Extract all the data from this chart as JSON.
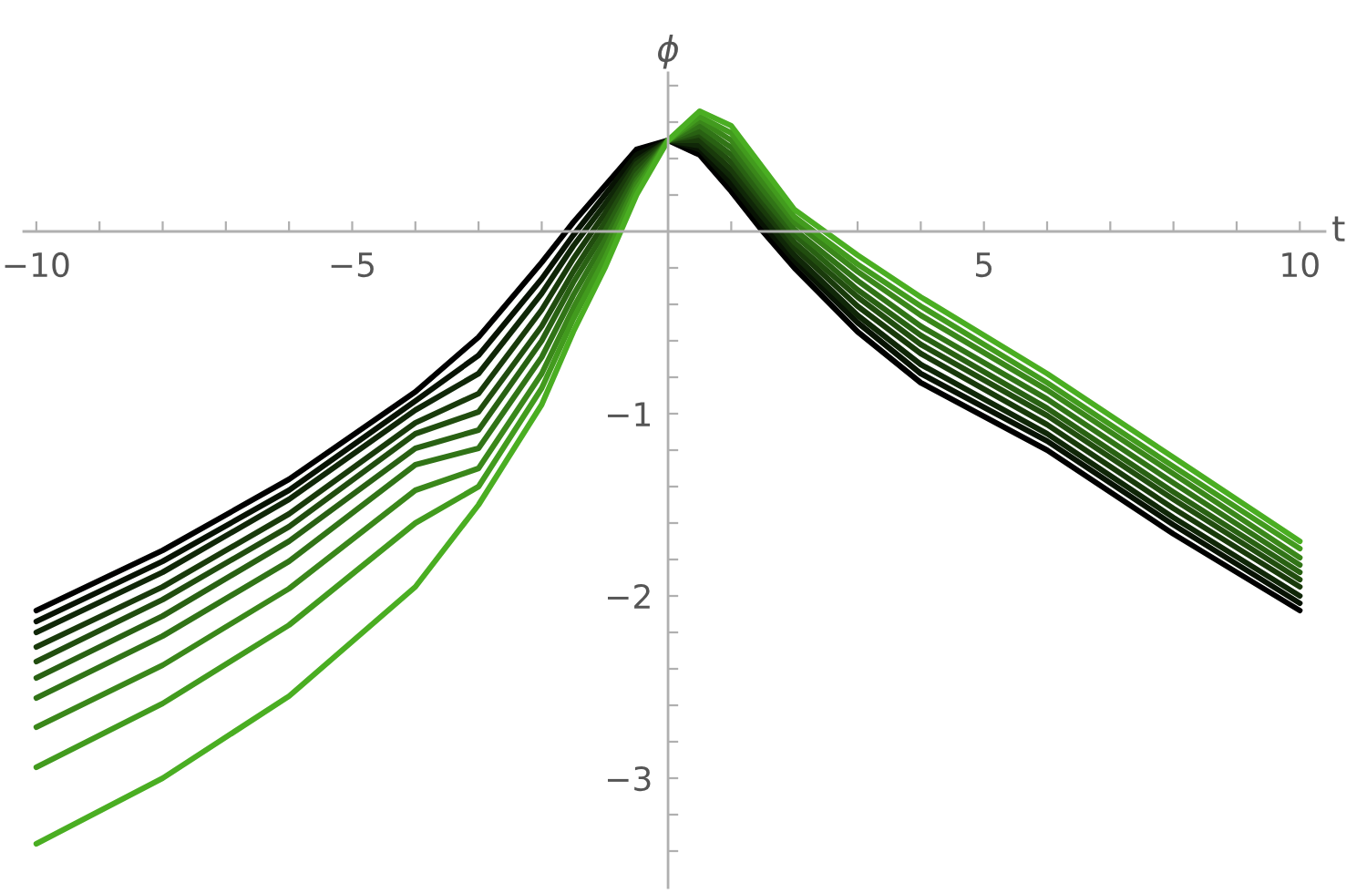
{
  "chart_data": {
    "type": "line",
    "xlabel": "t",
    "ylabel": "ϕ",
    "x": [
      -10,
      -8,
      -6,
      -4,
      -3,
      -2,
      -1.5,
      -1,
      -0.5,
      0,
      0.5,
      1,
      1.5,
      2,
      3,
      4,
      6,
      8,
      10
    ],
    "xlim": [
      -10.2,
      10.4
    ],
    "ylim": [
      -3.6,
      0.87
    ],
    "xticks": [
      {
        "value": -10,
        "label": "−10"
      },
      {
        "value": -9,
        "label": null
      },
      {
        "value": -8,
        "label": null
      },
      {
        "value": -7,
        "label": null
      },
      {
        "value": -6,
        "label": null
      },
      {
        "value": -5,
        "label": "−5"
      },
      {
        "value": -4,
        "label": null
      },
      {
        "value": -3,
        "label": null
      },
      {
        "value": -2,
        "label": null
      },
      {
        "value": -1,
        "label": null
      },
      {
        "value": 1,
        "label": null
      },
      {
        "value": 2,
        "label": null
      },
      {
        "value": 3,
        "label": null
      },
      {
        "value": 4,
        "label": null
      },
      5,
      {
        "value": 6,
        "label": null
      },
      {
        "value": 7,
        "label": null
      },
      {
        "value": 8,
        "label": null
      },
      {
        "value": 9,
        "label": null
      },
      10
    ],
    "yticks": [
      {
        "value": -3.4,
        "label": null
      },
      {
        "value": -3.2,
        "label": null
      },
      {
        "value": -3,
        "label": "−3"
      },
      {
        "value": -2.8,
        "label": null
      },
      {
        "value": -2.6,
        "label": null
      },
      {
        "value": -2.4,
        "label": null
      },
      {
        "value": -2.2,
        "label": null
      },
      {
        "value": -2,
        "label": "−2"
      },
      {
        "value": -1.8,
        "label": null
      },
      {
        "value": -1.6,
        "label": null
      },
      {
        "value": -1.4,
        "label": null
      },
      {
        "value": -1.2,
        "label": null
      },
      {
        "value": -1,
        "label": "−1"
      },
      {
        "value": -0.8,
        "label": null
      },
      {
        "value": -0.6,
        "label": null
      },
      {
        "value": -0.4,
        "label": null
      },
      {
        "value": -0.2,
        "label": null
      },
      {
        "value": 0.2,
        "label": null
      },
      {
        "value": 0.4,
        "label": null
      },
      {
        "value": 0.6,
        "label": null
      },
      {
        "value": 0.8,
        "label": null
      }
    ],
    "grid": false,
    "series": [
      {
        "color": "#000000",
        "values": [
          -2.08,
          -1.75,
          -1.36,
          -0.88,
          -0.58,
          -0.17,
          0.05,
          0.25,
          0.45,
          0.5,
          0.42,
          0.22,
          0.0,
          -0.2,
          -0.55,
          -0.83,
          -1.2,
          -1.66,
          -2.08
        ]
      },
      {
        "color": "#081304",
        "values": [
          -2.14,
          -1.81,
          -1.42,
          -0.93,
          -0.68,
          -0.26,
          -0.02,
          0.2,
          0.42,
          0.5,
          0.45,
          0.26,
          0.04,
          -0.16,
          -0.5,
          -0.78,
          -1.15,
          -1.61,
          -2.04
        ]
      },
      {
        "color": "#102708",
        "values": [
          -2.2,
          -1.87,
          -1.47,
          -0.98,
          -0.78,
          -0.34,
          -0.08,
          0.15,
          0.39,
          0.5,
          0.47,
          0.3,
          0.08,
          -0.13,
          -0.46,
          -0.73,
          -1.11,
          -1.57,
          -2.0
        ]
      },
      {
        "color": "#193a0b",
        "values": [
          -2.28,
          -1.95,
          -1.55,
          -1.05,
          -0.89,
          -0.43,
          -0.15,
          0.1,
          0.37,
          0.5,
          0.5,
          0.34,
          0.12,
          -0.09,
          -0.41,
          -0.67,
          -1.06,
          -1.52,
          -1.95
        ]
      },
      {
        "color": "#214d0f",
        "values": [
          -2.36,
          -2.02,
          -1.62,
          -1.11,
          -0.99,
          -0.52,
          -0.22,
          0.05,
          0.34,
          0.5,
          0.53,
          0.38,
          0.16,
          -0.06,
          -0.36,
          -0.62,
          -1.01,
          -1.47,
          -1.91
        ]
      },
      {
        "color": "#296113",
        "values": [
          -2.45,
          -2.11,
          -1.7,
          -1.19,
          -1.09,
          -0.6,
          -0.28,
          0.0,
          0.31,
          0.5,
          0.55,
          0.42,
          0.19,
          -0.02,
          -0.32,
          -0.57,
          -0.97,
          -1.43,
          -1.87
        ]
      },
      {
        "color": "#317417",
        "values": [
          -2.56,
          -2.22,
          -1.81,
          -1.28,
          -1.19,
          -0.69,
          -0.35,
          -0.05,
          0.28,
          0.5,
          0.58,
          0.46,
          0.23,
          0.01,
          -0.27,
          -0.52,
          -0.92,
          -1.38,
          -1.83
        ]
      },
      {
        "color": "#3a871a",
        "values": [
          -2.72,
          -2.38,
          -1.96,
          -1.42,
          -1.3,
          -0.78,
          -0.42,
          -0.1,
          0.26,
          0.5,
          0.61,
          0.5,
          0.27,
          0.05,
          -0.22,
          -0.46,
          -0.87,
          -1.33,
          -1.79
        ]
      },
      {
        "color": "#429b1e",
        "values": [
          -2.94,
          -2.59,
          -2.16,
          -1.6,
          -1.4,
          -0.86,
          -0.48,
          -0.15,
          0.23,
          0.5,
          0.63,
          0.54,
          0.31,
          0.08,
          -0.18,
          -0.41,
          -0.83,
          -1.29,
          -1.74
        ]
      },
      {
        "color": "#4aae22",
        "values": [
          -3.36,
          -3.0,
          -2.55,
          -1.95,
          -1.5,
          -0.95,
          -0.55,
          -0.2,
          0.2,
          0.5,
          0.66,
          0.58,
          0.35,
          0.12,
          -0.13,
          -0.36,
          -0.78,
          -1.24,
          -1.7
        ]
      }
    ]
  }
}
